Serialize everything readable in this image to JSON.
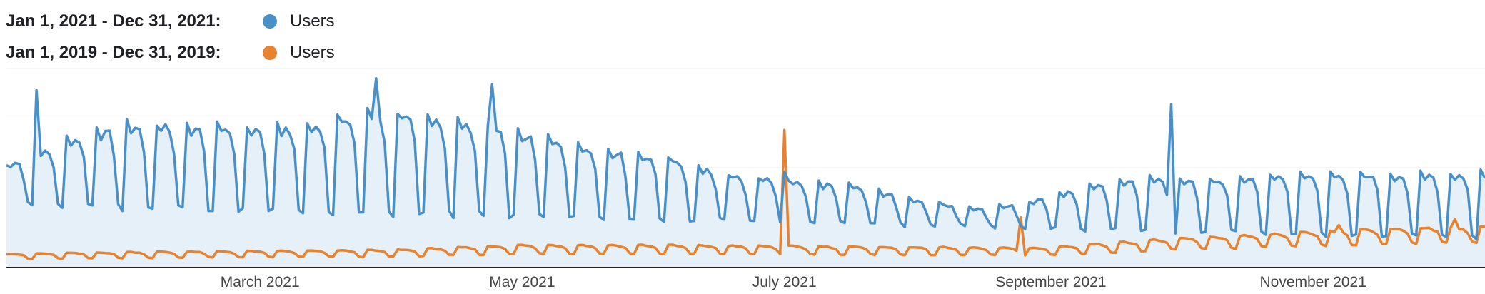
{
  "legend": {
    "current": {
      "range": "Jan 1, 2021 - Dec 31, 2021:",
      "series": "Users"
    },
    "previous": {
      "range": "Jan 1, 2019 - Dec 31, 2019:",
      "series": "Users"
    }
  },
  "colors": {
    "current": "#4a90c8",
    "current_fill": "#e6f0f9",
    "previous": "#e8822e",
    "grid": "#ececec",
    "axis": "#222222"
  },
  "chart_data": {
    "type": "line",
    "x_ticks": [
      "March 2021",
      "May 2021",
      "July 2021",
      "September 2021",
      "November 2021"
    ],
    "x_tick_days": [
      59,
      120,
      181,
      243,
      304
    ],
    "ylim": [
      0,
      1000
    ],
    "visible_days": 344,
    "grid": true,
    "legend_position": "top-left",
    "series": [
      {
        "name": "Users",
        "range": "Jan 1, 2021 - Dec 31, 2021",
        "weekly_profile": [
          1,
          0.94,
          0.97,
          0.95,
          0.8,
          0.3,
          0.28
        ],
        "weekday_anchor_days": [
          0,
          14,
          28,
          42,
          56,
          70,
          84,
          98,
          112,
          126,
          140,
          154,
          168,
          182,
          196,
          210,
          224,
          238,
          252,
          266,
          280,
          294,
          308,
          322,
          343
        ],
        "weekday_anchor_values": [
          520,
          650,
          730,
          720,
          710,
          720,
          790,
          770,
          710,
          660,
          600,
          560,
          470,
          440,
          420,
          360,
          300,
          330,
          420,
          460,
          440,
          470,
          470,
          470,
          480
        ],
        "weekend_values": {
          "start": 320,
          "end": 150
        },
        "spikes": [
          {
            "day": 7,
            "value": 890
          },
          {
            "day": 86,
            "value": 950
          },
          {
            "day": 113,
            "value": 920
          },
          {
            "day": 181,
            "value": 480
          },
          {
            "day": 271,
            "value": 820
          }
        ]
      },
      {
        "name": "Users",
        "range": "Jan 1, 2019 - Dec 31, 2019",
        "weekly_profile": [
          1,
          1,
          0.97,
          0.94,
          0.86,
          0.62,
          0.6
        ],
        "weekday_anchor_days": [
          0,
          30,
          60,
          90,
          120,
          150,
          180,
          210,
          240,
          270,
          300,
          330,
          343
        ],
        "weekday_anchor_values": [
          65,
          75,
          80,
          85,
          110,
          110,
          105,
          100,
          95,
          140,
          170,
          200,
          200
        ],
        "spikes": [
          {
            "day": 181,
            "value": 690
          },
          {
            "day": 236,
            "value": 250
          },
          {
            "day": 310,
            "value": 210
          },
          {
            "day": 337,
            "value": 240
          }
        ]
      }
    ]
  }
}
